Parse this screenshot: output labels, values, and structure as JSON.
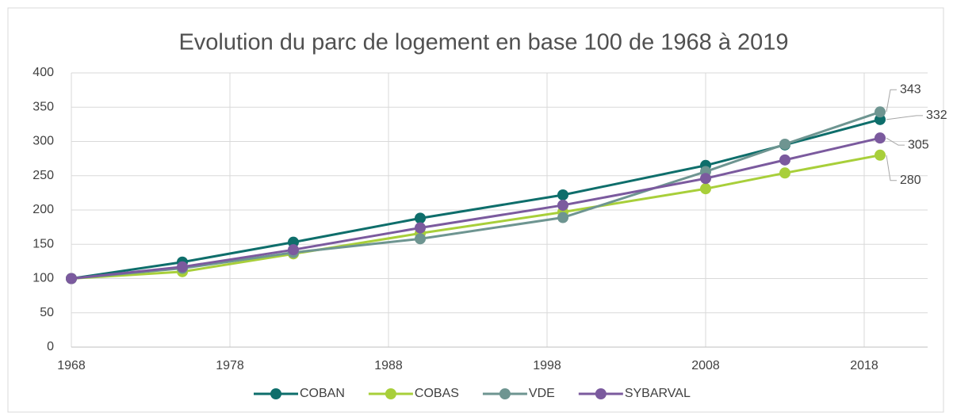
{
  "chart_data": {
    "type": "line",
    "title": "Evolution du parc de logement en base 100 de 1968 à 2019",
    "x": [
      1968,
      1975,
      1982,
      1990,
      1999,
      2008,
      2013,
      2019
    ],
    "series": [
      {
        "name": "COBAN",
        "color": "#0e6e6b",
        "values": [
          100,
          124,
          153,
          188,
          222,
          265,
          295,
          332
        ]
      },
      {
        "name": "COBAS",
        "color": "#a8cf3a",
        "values": [
          100,
          110,
          136,
          166,
          197,
          231,
          254,
          280
        ]
      },
      {
        "name": "VDE",
        "color": "#6e9591",
        "values": [
          100,
          115,
          138,
          158,
          189,
          256,
          296,
          343
        ]
      },
      {
        "name": "SYBARVAL",
        "color": "#7b5a9e",
        "values": [
          100,
          117,
          142,
          174,
          207,
          246,
          273,
          305
        ]
      }
    ],
    "xlim": [
      1968,
      2022
    ],
    "xticks": [
      1968,
      1978,
      1988,
      1998,
      2008,
      2018
    ],
    "ylim": [
      0,
      400
    ],
    "yticks": [
      0,
      50,
      100,
      150,
      200,
      250,
      300,
      350,
      400
    ],
    "grid": true,
    "legend": "bottom"
  }
}
